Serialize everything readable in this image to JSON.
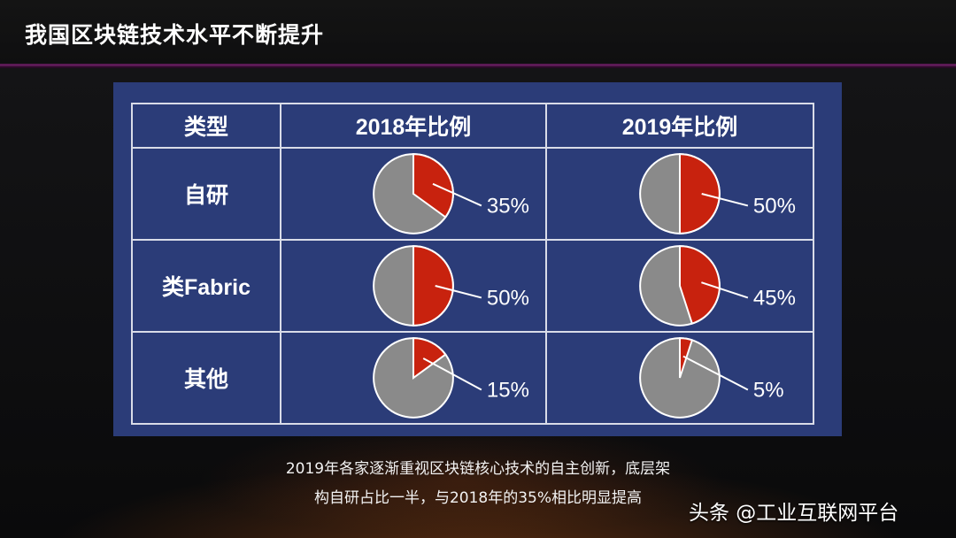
{
  "header": {
    "title": "我国区块链技术水平不断提升"
  },
  "table": {
    "headers": [
      "类型",
      "2018年比例",
      "2019年比例"
    ]
  },
  "chart_data": {
    "type": "pie",
    "colors": {
      "highlight": "#c8220e",
      "rest": "#8a8a8a"
    },
    "rows": [
      {
        "category": "自研",
        "2018": 35,
        "2019": 50,
        "label_2018": "35%",
        "label_2019": "50%"
      },
      {
        "category": "类Fabric",
        "2018": 50,
        "2019": 45,
        "label_2018": "50%",
        "label_2019": "45%"
      },
      {
        "category": "其他",
        "2018": 15,
        "2019": 5,
        "label_2018": "15%",
        "label_2019": "5%"
      }
    ]
  },
  "caption": {
    "line1": "2019年各家逐渐重视区块链核心技术的自主创新，底层架",
    "line2": "构自研占比一半，与2018年的35%相比明显提高"
  },
  "watermark": "头条 @工业互联网平台"
}
